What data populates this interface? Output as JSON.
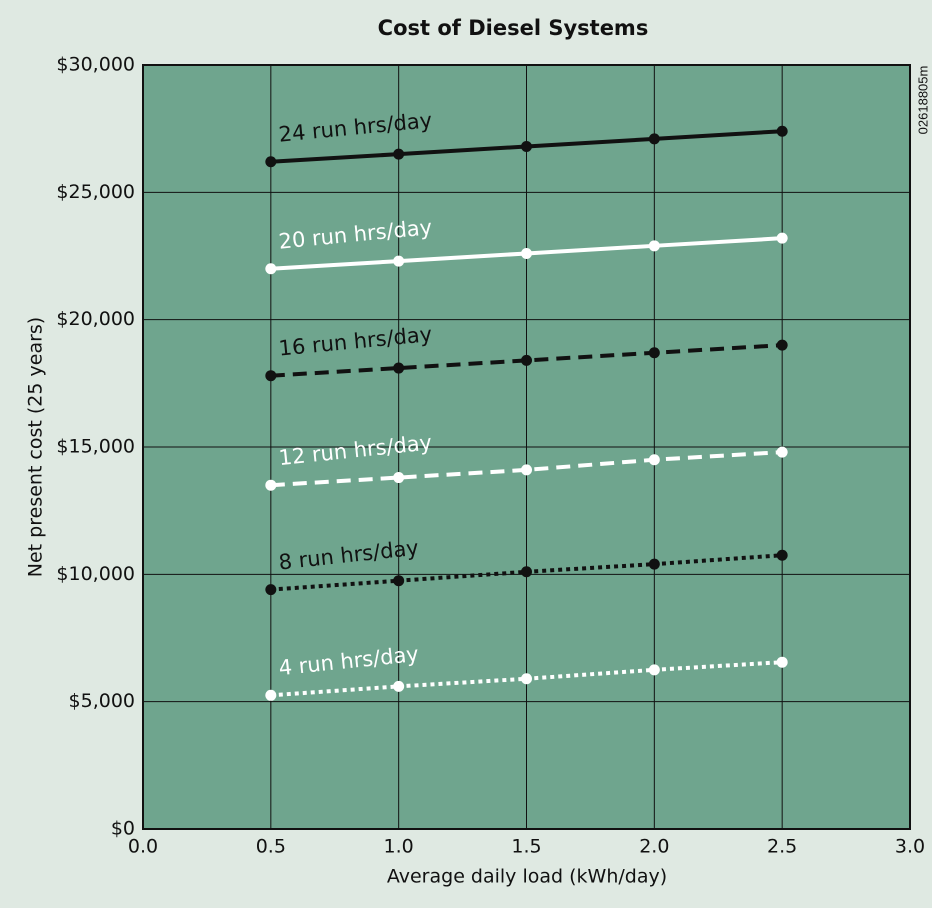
{
  "chart_data": {
    "type": "line",
    "title": "Cost of Diesel Systems",
    "side_note": "02618805m",
    "x_label": "Average daily load (kWh/day)",
    "y_label": "Net present cost (25 years)",
    "x": [
      0.5,
      1.0,
      1.5,
      2.0,
      2.5
    ],
    "xlim": [
      0,
      3
    ],
    "xticks": [
      {
        "value": 0,
        "label": "0.0"
      },
      0.5,
      {
        "value": 1,
        "label": "1.0"
      },
      1.5,
      {
        "value": 2,
        "label": "2.0"
      },
      2.5,
      {
        "value": 3,
        "label": "3.0"
      }
    ],
    "ylim": [
      0,
      30000
    ],
    "yticks": [
      {
        "value": 0,
        "label": "$0"
      },
      {
        "value": 5000,
        "label": "$5,000"
      },
      {
        "value": 10000,
        "label": "$10,000"
      },
      {
        "value": 15000,
        "label": "$15,000"
      },
      {
        "value": 20000,
        "label": "$20,000"
      },
      {
        "value": 25000,
        "label": "$25,000"
      },
      {
        "value": 30000,
        "label": "$30,000"
      }
    ],
    "grid": true,
    "series": [
      {
        "name": "24 run hrs/day",
        "color": "#111111",
        "dash": "solid",
        "values": [
          26200,
          26500,
          26800,
          27100,
          27400
        ]
      },
      {
        "name": "20 run hrs/day",
        "color": "#ffffff",
        "dash": "solid",
        "values": [
          22000,
          22300,
          22600,
          22900,
          23200
        ]
      },
      {
        "name": "16 run hrs/day",
        "color": "#111111",
        "dash": "dashed",
        "values": [
          17800,
          18100,
          18400,
          18700,
          19000
        ]
      },
      {
        "name": "12 run hrs/day",
        "color": "#ffffff",
        "dash": "dashed",
        "values": [
          13500,
          13800,
          14100,
          14500,
          14800
        ]
      },
      {
        "name": "8 run hrs/day",
        "color": "#111111",
        "dash": "dotted",
        "values": [
          9400,
          9750,
          10100,
          10400,
          10750
        ]
      },
      {
        "name": "4 run hrs/day",
        "color": "#ffffff",
        "dash": "dotted",
        "values": [
          5250,
          5600,
          5900,
          6250,
          6550
        ]
      }
    ]
  }
}
